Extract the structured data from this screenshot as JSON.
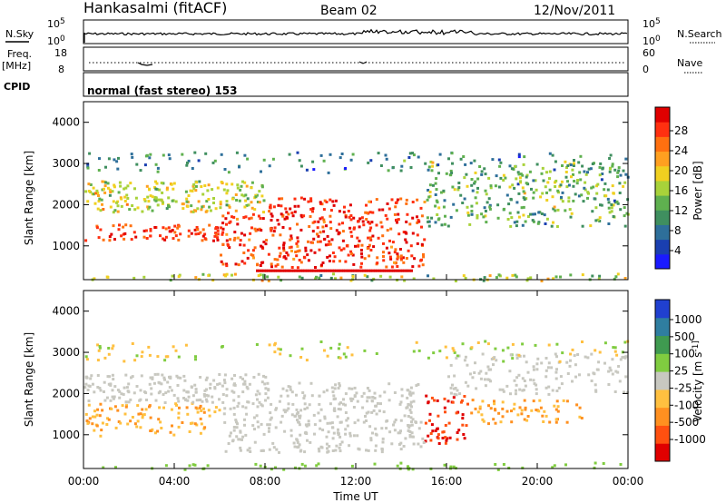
{
  "header": {
    "station": "Hankasalmi (fitACF)",
    "beam": "Beam 02",
    "date": "12/Nov/2011"
  },
  "strip": {
    "nsky_label": "N.Sky",
    "nsky_ticks": [
      "10^5",
      "10^0"
    ],
    "nsearch_label": "N.Search",
    "nsearch_ticks": [
      "10^5",
      "10^0"
    ],
    "freq_label": "Freq.",
    "freq_unit": "[MHz]",
    "freq_ticks": [
      "18",
      "8"
    ],
    "nave_label": "Nave",
    "nave_ticks": [
      "60",
      "0"
    ],
    "cpid_label": "CPID",
    "cpid_text": "normal (fast stereo) 153"
  },
  "chart_data": [
    {
      "type": "heatmap",
      "name": "Power",
      "ylabel": "Slant Range [km]",
      "xlabel": "Time UT",
      "ylim": [
        180,
        4500
      ],
      "y_ticks": [
        "1000",
        "2000",
        "3000",
        "4000"
      ],
      "x_ticks": [
        "00:00",
        "04:00",
        "08:00",
        "12:00",
        "16:00",
        "20:00",
        "00:00"
      ],
      "colorbar": {
        "label": "Power [dB]",
        "range": [
          0,
          30
        ],
        "ticks": [
          "4",
          "8",
          "12",
          "16",
          "20",
          "24",
          "28"
        ],
        "colors": [
          "#1a1aff",
          "#1a3fb0",
          "#2e6f9a",
          "#3f8f5f",
          "#5fb04f",
          "#a8d23a",
          "#f0d020",
          "#ffa020",
          "#ff7010",
          "#ff3010",
          "#e00000"
        ]
      }
    },
    {
      "type": "heatmap",
      "name": "Velocity",
      "ylabel": "Slant Range [km]",
      "xlabel": "Time UT",
      "ylim": [
        180,
        4500
      ],
      "y_ticks": [
        "1000",
        "2000",
        "3000",
        "4000"
      ],
      "x_ticks": [
        "00:00",
        "04:00",
        "08:00",
        "12:00",
        "16:00",
        "20:00",
        "00:00"
      ],
      "colorbar": {
        "label": "Velocity [m s^-1]",
        "ticks": [
          "1000",
          "500",
          "100",
          "25",
          "-25",
          "-100",
          "-500",
          "-1000"
        ],
        "colors": [
          "#2040d0",
          "#2f7ea0",
          "#3f9a50",
          "#80cc40",
          "#c8c8c0",
          "#ffc040",
          "#ff9020",
          "#ff5010",
          "#e00000"
        ]
      }
    }
  ],
  "footer": {
    "x_ticks": [
      "00:00",
      "04:00",
      "08:00",
      "12:00",
      "16:00",
      "20:00",
      "00:00"
    ],
    "xlabel": "Time UT"
  }
}
